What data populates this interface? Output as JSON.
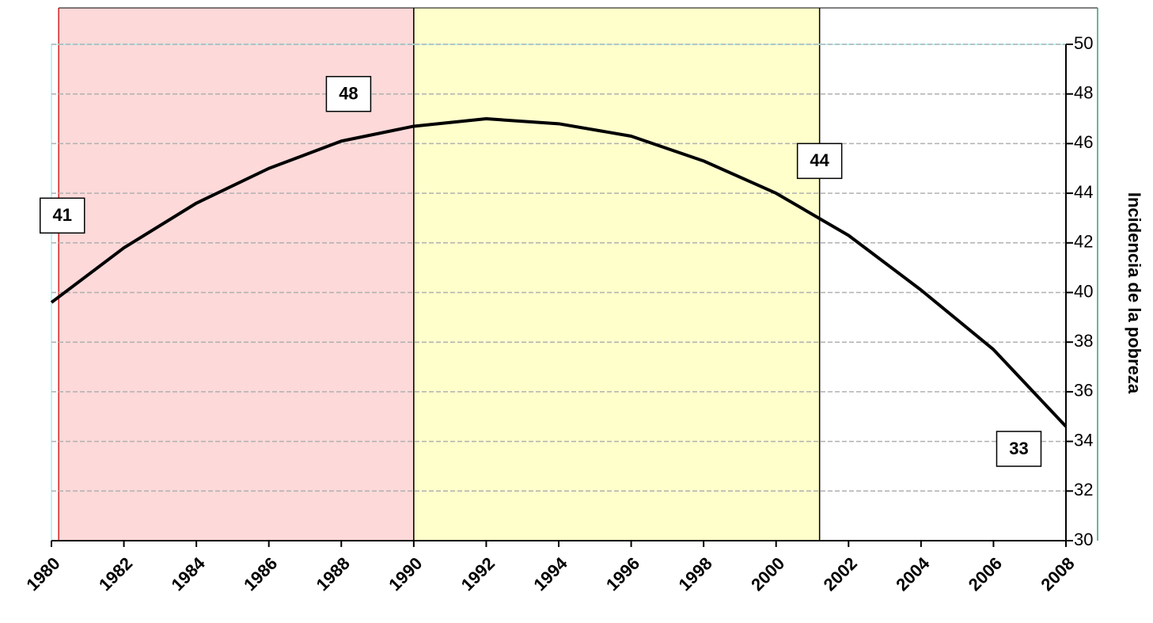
{
  "chart_data": {
    "type": "line",
    "y_axis_label": "Incidencia de la pobreza",
    "x": [
      1980,
      1982,
      1984,
      1986,
      1988,
      1990,
      1992,
      1994,
      1996,
      1998,
      2000,
      2002,
      2004,
      2006,
      2008
    ],
    "series": [
      {
        "name": "Incidencia de la pobreza",
        "color": "#000000",
        "values": [
          39.6,
          41.8,
          43.6,
          45.0,
          46.1,
          46.7,
          47.0,
          46.8,
          46.3,
          45.3,
          44.0,
          42.3,
          40.1,
          37.7,
          34.6
        ]
      }
    ],
    "xlim": [
      1980,
      2008
    ],
    "xticks": [
      1980,
      1982,
      1984,
      1986,
      1988,
      1990,
      1992,
      1994,
      1996,
      1998,
      2000,
      2002,
      2004,
      2006,
      2008
    ],
    "ylim": [
      30,
      50
    ],
    "yticks": [
      30,
      32,
      34,
      36,
      38,
      40,
      42,
      44,
      46,
      48,
      50
    ],
    "y_axis_side": "right",
    "grid": true,
    "bands": [
      {
        "start": 1980.2,
        "end": 1990,
        "color": "#fdd9d9",
        "edge": "#d82020"
      },
      {
        "start": 1990,
        "end": 2001.2,
        "color": "#ffffcc",
        "edge": "#000000"
      }
    ],
    "annotations": [
      {
        "text": "41",
        "x": 1980.3,
        "y": 43.1
      },
      {
        "text": "48",
        "x": 1988.2,
        "y": 48.0
      },
      {
        "text": "44",
        "x": 2001.2,
        "y": 45.3
      },
      {
        "text": "33",
        "x": 2006.7,
        "y": 33.7
      }
    ]
  }
}
